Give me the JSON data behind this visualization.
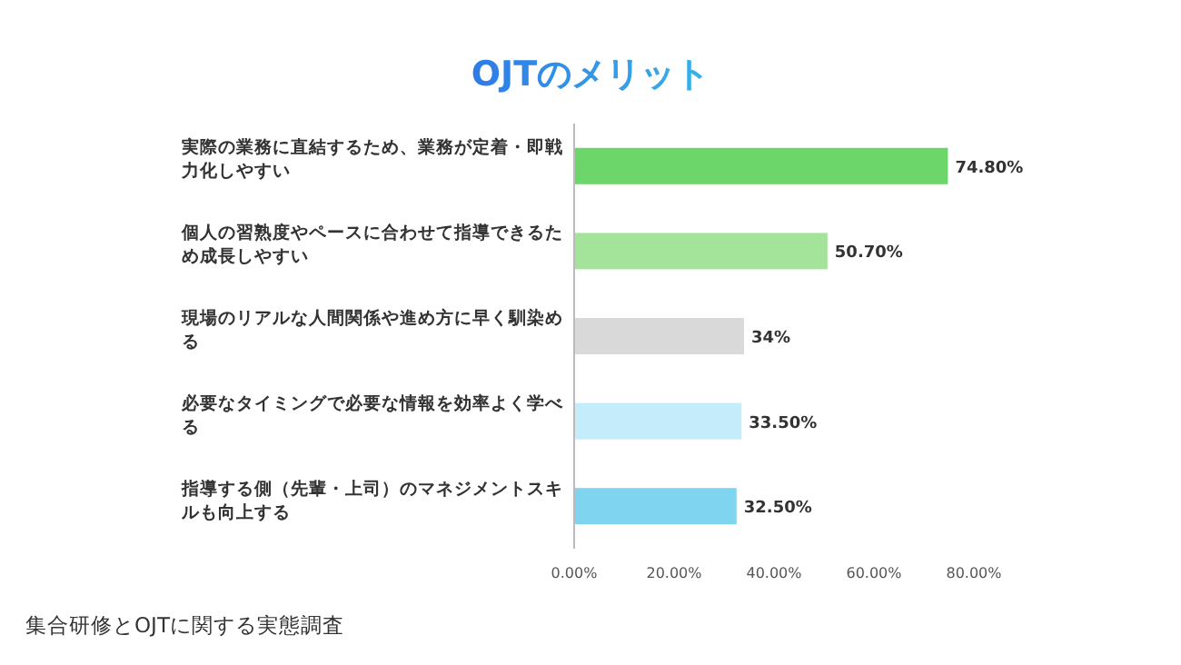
{
  "chart_data": {
    "type": "bar",
    "orientation": "horizontal",
    "title": "OJTのメリット",
    "categories": [
      "実際の業務に直結するため、業務が定着・即戦力化しやすい",
      "個人の習熟度やペースに合わせて指導できるため成長しやすい",
      "現場のリアルな人間関係や進め方に早く馴染める",
      "必要なタイミングで必要な情報を効率よく学べる",
      "指導する側（先輩・上司）のマネジメントスキルも向上する"
    ],
    "values": [
      74.8,
      50.7,
      34,
      33.5,
      32.5
    ],
    "colors": [
      "#6dd66a",
      "#a3e49a",
      "#d9d9d9",
      "#c5ecfb",
      "#7fd4f0"
    ],
    "value_labels": [
      "74.80%",
      "50.70%",
      "34%",
      "33.50%",
      "32.50%"
    ],
    "xlim": [
      0,
      80
    ],
    "xticks": [
      {
        "value": 0,
        "label": "0.00%"
      },
      {
        "value": 20,
        "label": "20.00%"
      },
      {
        "value": 40,
        "label": "40.00%"
      },
      {
        "value": 60,
        "label": "60.00%"
      },
      {
        "value": 80,
        "label": "80.00%"
      }
    ],
    "annotations": [
      "集合研修とOJTに関する実態調査"
    ]
  }
}
